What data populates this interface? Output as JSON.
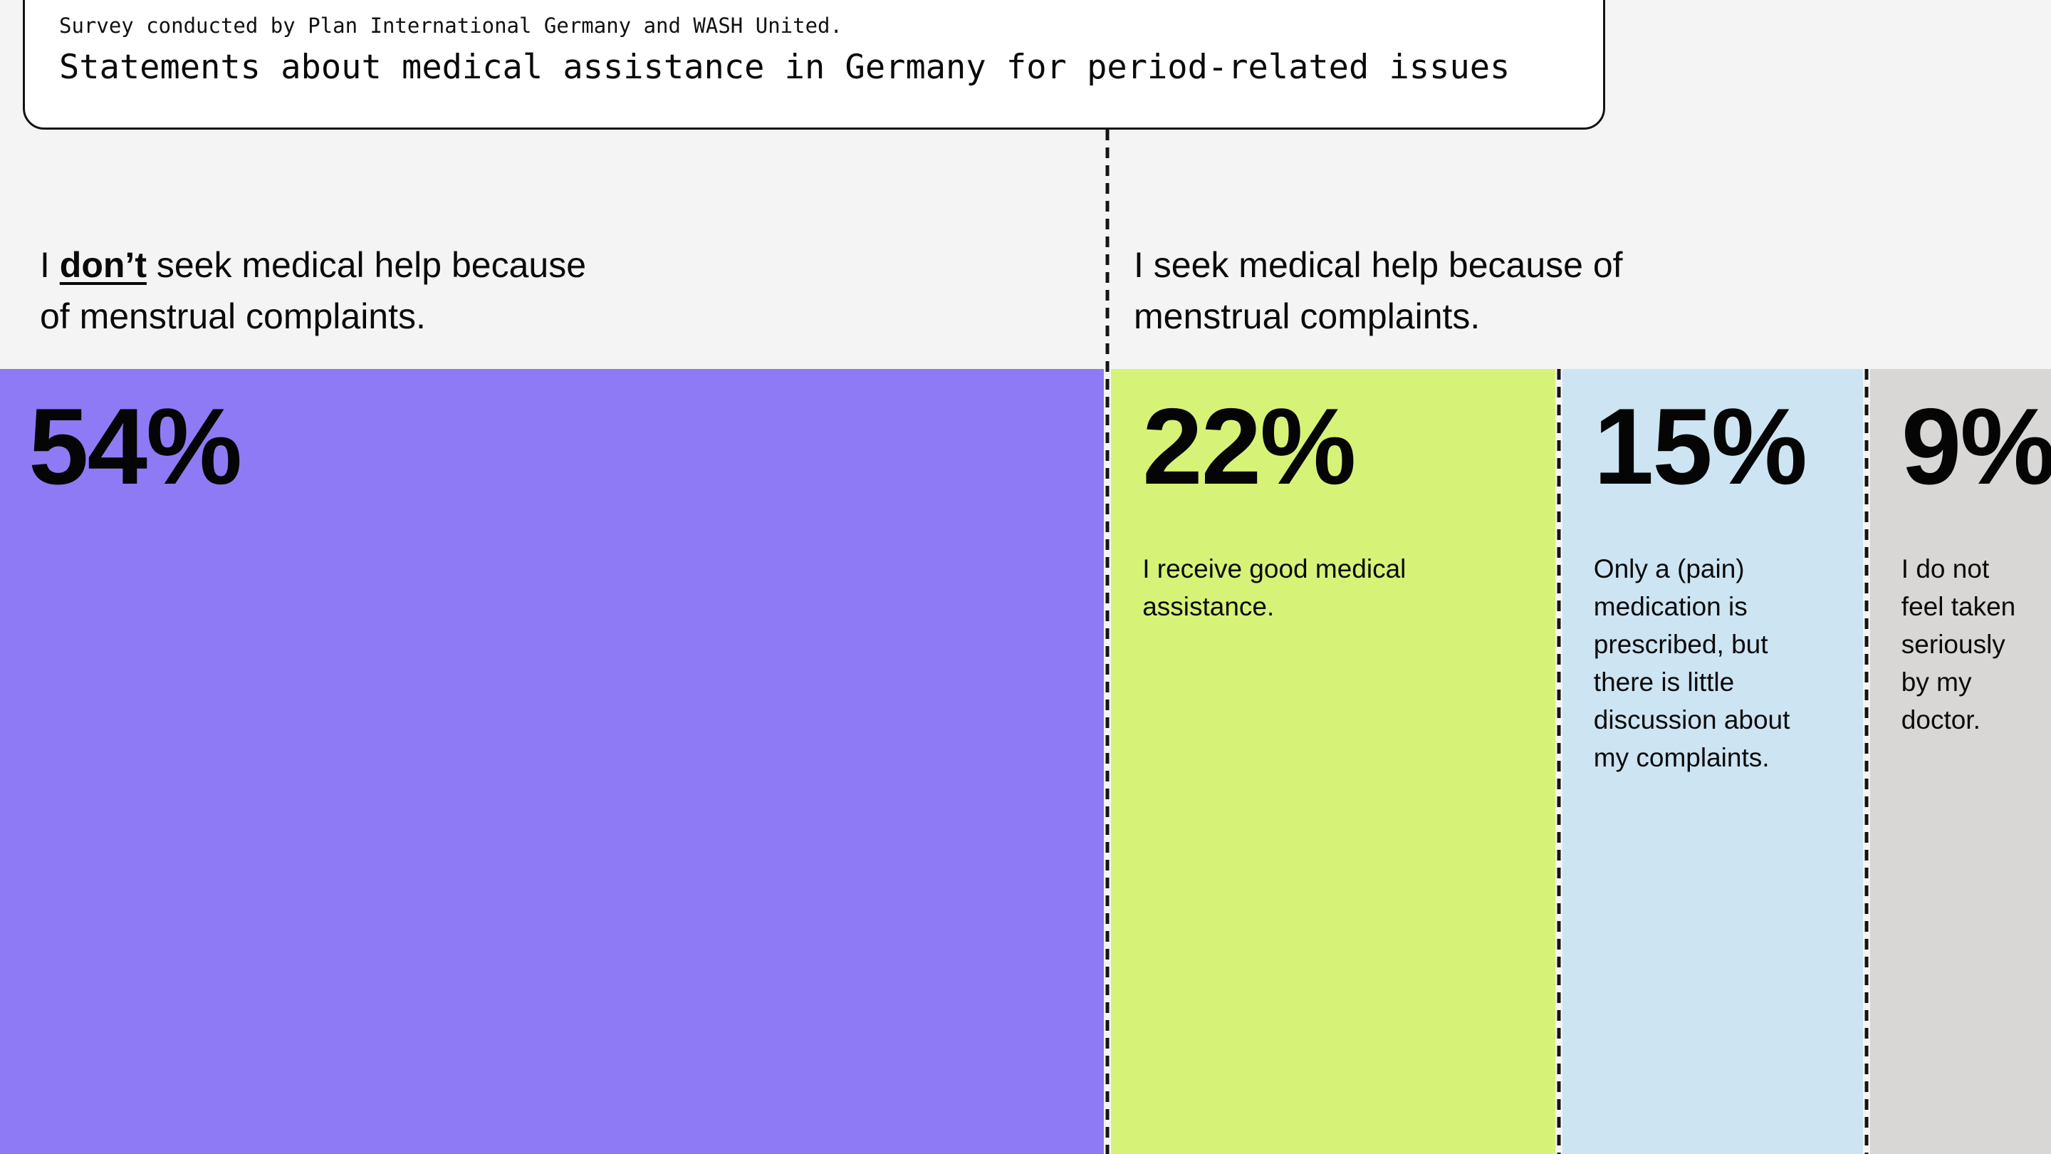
{
  "page": {
    "background": "#f4f4f4"
  },
  "source_card": {
    "survey_note": "Survey conducted by Plan International Germany and WASH United.",
    "title": "Statements about medical assistance in Germany for period-related issues"
  },
  "split_headers": {
    "left": {
      "prefix": "I ",
      "emphasis": "don’t",
      "suffix": " seek medical help because of menstrual complaints."
    },
    "right": "I seek medical help because of menstrual complaints."
  },
  "chart_data": {
    "type": "bar",
    "orientation": "horizontal",
    "stacked": true,
    "unit": "percent",
    "total": 100,
    "title": "Statements about medical assistance in Germany for period-related issues",
    "source_note": "Survey conducted by Plan International Germany and WASH United.",
    "group_labels": {
      "left": "I don’t seek medical help because of menstrual complaints.",
      "right": "I seek medical help because of menstrual complaints."
    },
    "segments": [
      {
        "value": 54,
        "display": "54%",
        "color": "#8f7af5",
        "caption": "",
        "group": "left"
      },
      {
        "value": 22,
        "display": "22%",
        "color": "#d6f377",
        "caption": "I receive good medical assistance.",
        "group": "right"
      },
      {
        "value": 15,
        "display": "15%",
        "color": "#cde4f3",
        "caption": "Only a (pain) medication is prescribed, but there is little discussion about my complaints.",
        "group": "right"
      },
      {
        "value": 9,
        "display": "9%",
        "color": "#d8d7d6",
        "caption": "I do not feel taken seriously by my doctor.",
        "group": "right"
      }
    ],
    "separator_positions_pct": [
      54,
      76,
      91
    ],
    "legend": "none",
    "axes": "none"
  }
}
